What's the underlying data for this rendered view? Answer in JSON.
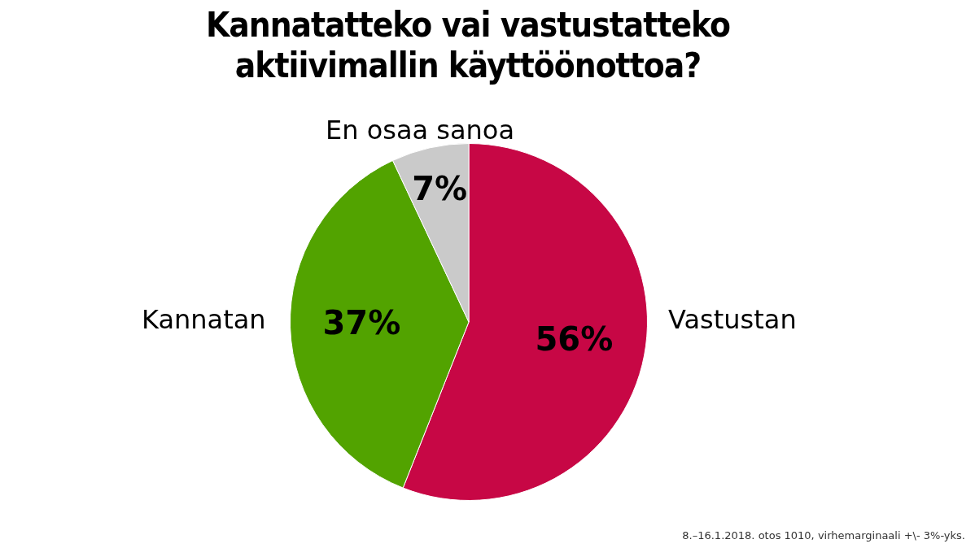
{
  "chart_data": {
    "type": "pie",
    "title": "Kannatatteko vai vastustatteko aktiivimallin käyttöönottoa?",
    "categories": [
      "Vastustan",
      "Kannatan",
      "En osaa sanoa"
    ],
    "values": [
      56,
      37,
      7
    ],
    "colors": [
      "#c70745",
      "#52a300",
      "#cacaca"
    ],
    "value_labels": [
      "56%",
      "37%",
      "7%"
    ],
    "annotations": [
      "8.–16.1.2018. otos 1010, virhemarginaali +\\- 3%-yks."
    ]
  }
}
